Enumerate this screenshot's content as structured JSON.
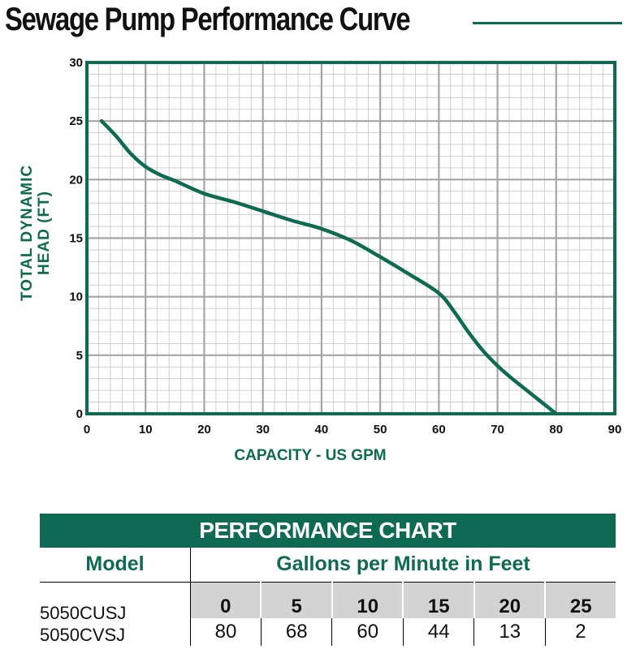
{
  "title": "Sewage Pump Performance Curve",
  "colors": {
    "accent": "#0e6a52",
    "grid": "#a5a5a5",
    "curve": "#0e6a52",
    "table_gray": "#d3d3d3"
  },
  "chart_data": {
    "type": "line",
    "title": "Sewage Pump Performance Curve",
    "xlabel": "CAPACITY - US GPM",
    "ylabel_lines": [
      "TOTAL DYNAMIC",
      "HEAD (FT)"
    ],
    "xlim": [
      0,
      90
    ],
    "ylim": [
      0,
      30
    ],
    "x_ticks": [
      0,
      10,
      20,
      30,
      40,
      50,
      60,
      70,
      80,
      90
    ],
    "y_ticks": [
      0,
      5,
      10,
      15,
      20,
      25,
      30
    ],
    "grid": true,
    "series": [
      {
        "name": "Total Dynamic Head",
        "x": [
          2.5,
          5,
          7.5,
          10,
          12.5,
          15,
          20,
          25,
          30,
          35,
          40,
          45,
          50,
          55,
          60,
          62.5,
          65,
          67.5,
          70,
          72.5,
          75,
          77.5,
          80
        ],
        "y": [
          25,
          23.7,
          22.2,
          21.1,
          20.4,
          19.9,
          18.8,
          18.1,
          17.3,
          16.5,
          15.8,
          14.8,
          13.4,
          11.9,
          10.3,
          8.8,
          7.0,
          5.4,
          4.1,
          3.0,
          2.0,
          1.0,
          0
        ]
      }
    ]
  },
  "table": {
    "header": "PERFORMANCE CHART",
    "model_label": "Model",
    "gpm_label": "Gallons per Minute in Feet",
    "models": [
      "5050CUSJ",
      "5050CVSJ"
    ],
    "head_values": [
      "0",
      "5",
      "10",
      "15",
      "20",
      "25"
    ],
    "gpm_values": [
      "80",
      "68",
      "60",
      "44",
      "13",
      "2"
    ]
  }
}
